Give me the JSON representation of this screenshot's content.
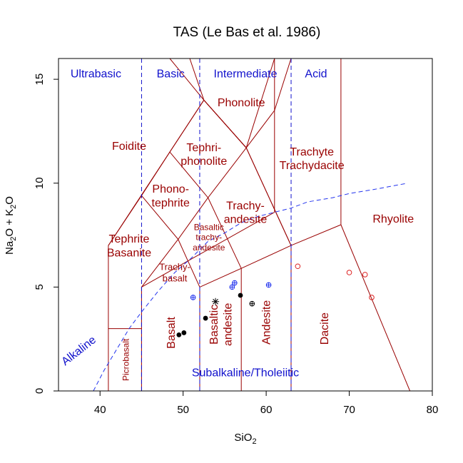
{
  "colors": {
    "field_line": "#990000",
    "field_label": "#990000",
    "divider": "#1111cc",
    "class_label": "#1111cc",
    "alkaline_line": "#2233ee",
    "axis": "#000000"
  },
  "chart_data": {
    "type": "scatter",
    "title": "TAS (Le Bas et al. 1986)",
    "xlabel": {
      "main": "SiO",
      "sub": "2"
    },
    "ylabel": {
      "parts": [
        "Na",
        "2",
        "O + K",
        "2",
        "O"
      ]
    },
    "xlim": [
      35,
      80
    ],
    "ylim": [
      0,
      16
    ],
    "x_ticks": [
      40,
      50,
      60,
      70,
      80
    ],
    "y_ticks": [
      0,
      5,
      10,
      15
    ],
    "grid": false,
    "field_boundaries": [
      [
        [
          41,
          0
        ],
        [
          41,
          3
        ],
        [
          45,
          3
        ]
      ],
      [
        [
          45,
          0
        ],
        [
          45,
          5
        ]
      ],
      [
        [
          52,
          0
        ],
        [
          52,
          5
        ]
      ],
      [
        [
          57,
          0
        ],
        [
          57,
          5.9
        ]
      ],
      [
        [
          63,
          0
        ],
        [
          63,
          7
        ]
      ],
      [
        [
          41,
          3
        ],
        [
          41,
          7
        ],
        [
          52.5,
          14
        ],
        [
          48.4,
          16
        ]
      ],
      [
        [
          45,
          5
        ],
        [
          49.4,
          7.3
        ],
        [
          53,
          9.3
        ],
        [
          57.6,
          11.7
        ],
        [
          61,
          13.5
        ],
        [
          63,
          16
        ]
      ],
      [
        [
          45,
          5
        ],
        [
          61,
          8.6
        ],
        [
          61,
          16
        ]
      ],
      [
        [
          52,
          5
        ],
        [
          57,
          5.9
        ],
        [
          63,
          7
        ],
        [
          69,
          8
        ],
        [
          69,
          16
        ]
      ],
      [
        [
          45,
          9.4
        ],
        [
          49.4,
          7.3
        ],
        [
          52,
          5
        ]
      ],
      [
        [
          48.4,
          11.5
        ],
        [
          53,
          9.3
        ],
        [
          57,
          5.9
        ]
      ],
      [
        [
          52.5,
          14
        ],
        [
          57.6,
          11.7
        ],
        [
          63,
          7
        ]
      ],
      [
        [
          57.6,
          11.7
        ],
        [
          52.5,
          14
        ]
      ],
      [
        [
          69,
          8
        ],
        [
          77.3,
          0
        ]
      ],
      [
        [
          41,
          7
        ],
        [
          45,
          9.4
        ],
        [
          48.4,
          11.5
        ],
        [
          52.5,
          14
        ]
      ],
      [
        [
          52.5,
          14
        ],
        [
          57.6,
          11.7
        ],
        [
          63,
          7
        ]
      ],
      [
        [
          50.8,
          16
        ],
        [
          52.5,
          14
        ],
        [
          57.6,
          11.7
        ]
      ],
      [
        [
          61,
          16
        ],
        [
          57.6,
          11.7
        ]
      ]
    ],
    "divider_lines": [
      {
        "x": 45,
        "y": [
          0,
          16
        ]
      },
      {
        "x": 52,
        "y": [
          0,
          16
        ]
      },
      {
        "x": 63,
        "y": [
          0,
          16
        ]
      }
    ],
    "alkaline_curve": [
      [
        39.2,
        0
      ],
      [
        40.5,
        1
      ],
      [
        42,
        2
      ],
      [
        43.5,
        3
      ],
      [
        45,
        3.8
      ],
      [
        47,
        4.8
      ],
      [
        49,
        5.7
      ],
      [
        51,
        6.4
      ],
      [
        53,
        7.2
      ],
      [
        55,
        7.6
      ],
      [
        57,
        8.1
      ],
      [
        59,
        8.4
      ],
      [
        61,
        8.6
      ],
      [
        63,
        8.8
      ],
      [
        65,
        9.1
      ],
      [
        68,
        9.3
      ],
      [
        70,
        9.5
      ],
      [
        73,
        9.7
      ],
      [
        77,
        10
      ]
    ],
    "class_labels": [
      {
        "text": "Ultrabasic",
        "x": 39.5,
        "y": 15.3
      },
      {
        "text": "Basic",
        "x": 48.5,
        "y": 15.3
      },
      {
        "text": "Intermediate",
        "x": 57.5,
        "y": 15.3
      },
      {
        "text": "Acid",
        "x": 66,
        "y": 15.3
      }
    ],
    "series_labels": [
      {
        "text": "Alkaline",
        "x": 37.7,
        "y": 1.8,
        "rotate": -38
      },
      {
        "text": "Subalkaline/Tholeiitic",
        "x": 57.5,
        "y": 0.7,
        "rotate": 0
      }
    ],
    "field_labels": [
      {
        "lines": [
          "Phonolite"
        ],
        "x": 57,
        "y": 13.9,
        "size": 16,
        "rotate": 0
      },
      {
        "lines": [
          "Foidite"
        ],
        "x": 43.5,
        "y": 11.8,
        "size": 16,
        "rotate": 0
      },
      {
        "lines": [
          "Tephri-",
          "phonolite"
        ],
        "x": 52.5,
        "y": 11.4,
        "size": 16,
        "rotate": 0
      },
      {
        "lines": [
          "Trachyte",
          "Trachydacite"
        ],
        "x": 65.5,
        "y": 11.2,
        "size": 16,
        "rotate": 0
      },
      {
        "lines": [
          "Phono-",
          "tephrite"
        ],
        "x": 48.5,
        "y": 9.4,
        "size": 16,
        "rotate": 0
      },
      {
        "lines": [
          "Trachy-",
          "andesite"
        ],
        "x": 57.5,
        "y": 8.6,
        "size": 16,
        "rotate": 0
      },
      {
        "lines": [
          "Rhyolite"
        ],
        "x": 75.3,
        "y": 8.3,
        "size": 16,
        "rotate": 0
      },
      {
        "lines": [
          "Tephrite",
          "Basanite"
        ],
        "x": 43.5,
        "y": 7.0,
        "size": 16,
        "rotate": 0
      },
      {
        "lines": [
          "Basaltic",
          "trachy-",
          "andesite"
        ],
        "x": 53.1,
        "y": 7.4,
        "size": 12,
        "rotate": 0
      },
      {
        "lines": [
          "Trachy-",
          "basalt"
        ],
        "x": 49,
        "y": 5.7,
        "size": 13,
        "rotate": 0
      },
      {
        "lines": [
          "Picrobasalt"
        ],
        "x": 43.1,
        "y": 1.5,
        "size": 12,
        "rotate": -90
      },
      {
        "lines": [
          "Basalt"
        ],
        "x": 48.5,
        "y": 2.8,
        "size": 16,
        "rotate": -90
      },
      {
        "lines": [
          "Basaltic",
          "andesite"
        ],
        "x": 54.5,
        "y": 3.2,
        "size": 16,
        "rotate": -90
      },
      {
        "lines": [
          "Andesite"
        ],
        "x": 60,
        "y": 3.3,
        "size": 16,
        "rotate": -90
      },
      {
        "lines": [
          "Dacite"
        ],
        "x": 67,
        "y": 3.0,
        "size": 16,
        "rotate": -90
      }
    ],
    "points": [
      {
        "x": 49.5,
        "y": 2.7,
        "marker": "filled-circle",
        "color": "#000000"
      },
      {
        "x": 50.1,
        "y": 2.8,
        "marker": "filled-circle",
        "color": "#000000"
      },
      {
        "x": 52.7,
        "y": 3.5,
        "marker": "filled-circle",
        "color": "#000000"
      },
      {
        "x": 56.9,
        "y": 4.6,
        "marker": "filled-circle",
        "color": "#000000"
      },
      {
        "x": 53.9,
        "y": 4.3,
        "marker": "asterisk",
        "color": "#000000"
      },
      {
        "x": 58.3,
        "y": 4.2,
        "marker": "circle-plus",
        "color": "#000000"
      },
      {
        "x": 51.2,
        "y": 4.5,
        "marker": "circle-plus",
        "color": "#2233ee"
      },
      {
        "x": 55.9,
        "y": 5.0,
        "marker": "circle-plus",
        "color": "#2233ee"
      },
      {
        "x": 56.2,
        "y": 5.2,
        "marker": "circle-plus",
        "color": "#2233ee"
      },
      {
        "x": 60.3,
        "y": 5.1,
        "marker": "circle-plus",
        "color": "#2233ee"
      },
      {
        "x": 63.8,
        "y": 6.0,
        "marker": "open-circle",
        "color": "#dd2222"
      },
      {
        "x": 70.0,
        "y": 5.7,
        "marker": "open-circle",
        "color": "#dd2222"
      },
      {
        "x": 71.9,
        "y": 5.6,
        "marker": "open-circle",
        "color": "#dd2222"
      },
      {
        "x": 72.7,
        "y": 4.5,
        "marker": "open-circle",
        "color": "#dd2222"
      }
    ]
  }
}
